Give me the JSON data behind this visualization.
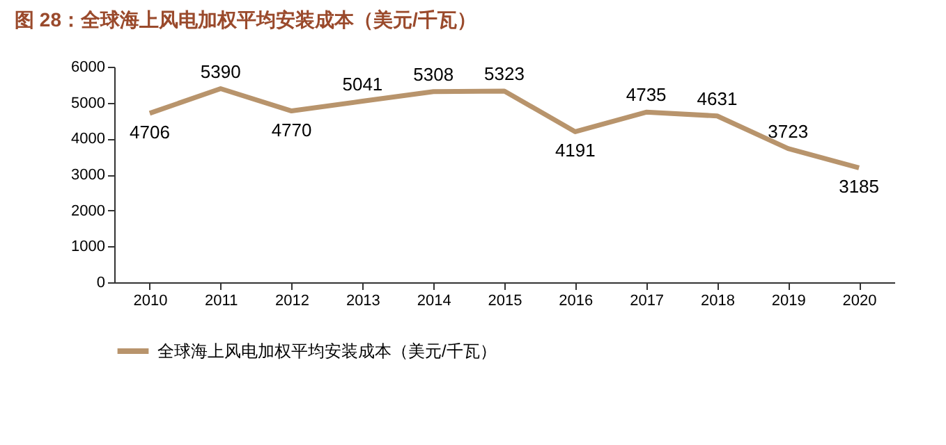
{
  "chart_data": {
    "type": "line",
    "title": "图 28：全球海上风电加权平均安装成本（美元/千瓦）",
    "categories": [
      "2010",
      "2011",
      "2012",
      "2013",
      "2014",
      "2015",
      "2016",
      "2017",
      "2018",
      "2019",
      "2020"
    ],
    "series": [
      {
        "name": "全球海上风电加权平均安装成本（美元/千瓦）",
        "color": "#b8946c",
        "values": [
          4706,
          5390,
          4770,
          5041,
          5308,
          5323,
          4191,
          4735,
          4631,
          3723,
          3185
        ]
      }
    ],
    "ylim": [
      0,
      6000
    ],
    "yticks": [
      0,
      1000,
      2000,
      3000,
      4000,
      5000,
      6000
    ],
    "data_labels": true,
    "legend": "bottom",
    "grid": false,
    "marker": "none",
    "line_style": "solid"
  }
}
